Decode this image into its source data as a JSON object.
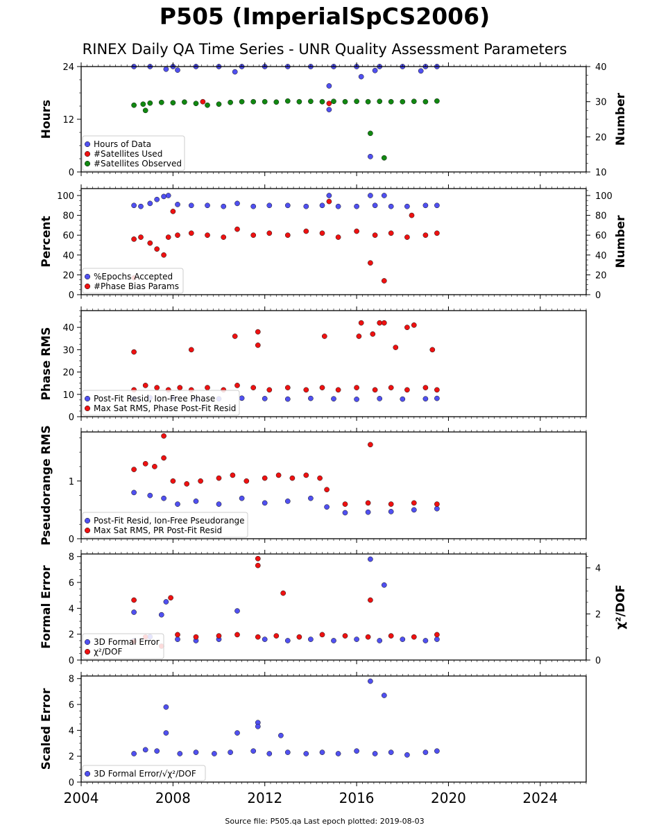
{
  "title": "P505 (ImperialSpCS2006)",
  "subtitle": "RINEX Daily QA Time Series - UNR Quality Assessment Parameters",
  "footer": "Source file: P505.qa Last epoch plotted: 2019-08-03",
  "colors": {
    "blue": "#5050f0",
    "red": "#ee1111",
    "green": "#118811",
    "dark_red": "#880000"
  },
  "chart_data": [
    {
      "type": "scatter",
      "ylabel": "Hours",
      "ylabel_right": "Number",
      "ylim": [
        0,
        24
      ],
      "ylim_right": [
        10,
        40
      ],
      "yticks": [
        0,
        12,
        24
      ],
      "yticks_right": [
        10,
        20,
        30,
        40
      ],
      "xlim": [
        2004,
        2026
      ],
      "xticks": [
        2004,
        2008,
        2012,
        2016,
        2020,
        2024
      ],
      "legend_loc": "lower-left",
      "series": [
        {
          "name": "Hours of Data",
          "color": "#5050f0",
          "axis": "left",
          "x": [
            2006.3,
            2007.0,
            2008.0,
            2009.0,
            2010.0,
            2011.0,
            2012.0,
            2013.0,
            2014.0,
            2015.0,
            2016.0,
            2017.0,
            2018.0,
            2019.0,
            2019.5,
            2007.7,
            2008.2,
            2010.7,
            2014.8,
            2014.8,
            2016.2,
            2016.6,
            2016.8,
            2018.8
          ],
          "y": [
            24,
            24,
            24,
            24,
            24,
            24,
            24,
            24,
            24,
            24,
            24,
            24,
            24,
            24,
            24,
            23.4,
            23.2,
            22.8,
            19.6,
            14.2,
            21.7,
            3.5,
            23.1,
            23.0
          ]
        },
        {
          "name": "#Satellites Used",
          "color": "#ee1111",
          "axis": "right",
          "x": [
            2009.3,
            2014.8
          ],
          "y": [
            30.0,
            29.5
          ]
        },
        {
          "name": "#Satellites Observed",
          "color": "#118811",
          "axis": "right",
          "x": [
            2006.3,
            2006.7,
            2007.0,
            2007.5,
            2008.0,
            2008.5,
            2009.0,
            2009.5,
            2010.0,
            2010.5,
            2011.0,
            2011.5,
            2012.0,
            2012.5,
            2013.0,
            2013.5,
            2014.0,
            2014.5,
            2015.0,
            2015.5,
            2016.0,
            2016.5,
            2017.0,
            2017.5,
            2018.0,
            2018.5,
            2019.0,
            2019.5,
            2006.8,
            2016.6,
            2017.2
          ],
          "y": [
            29.0,
            29.3,
            29.6,
            29.8,
            29.7,
            29.9,
            29.5,
            29.0,
            29.3,
            29.8,
            30.0,
            30.0,
            30.0,
            29.9,
            30.2,
            30.0,
            30.1,
            30.0,
            30.1,
            30.0,
            30.1,
            30.0,
            30.1,
            30.0,
            30.0,
            30.1,
            30.0,
            30.2,
            27.5,
            21.0,
            14.0
          ]
        }
      ]
    },
    {
      "type": "scatter",
      "ylabel": "Percent",
      "ylabel_right": "Number",
      "ylim": [
        0,
        107
      ],
      "ylim_right": [
        0,
        107
      ],
      "yticks": [
        0,
        20,
        40,
        60,
        80,
        100
      ],
      "yticks_right": [
        0,
        20,
        40,
        60,
        80,
        100
      ],
      "xlim": [
        2004,
        2026
      ],
      "xticks": [
        2004,
        2008,
        2012,
        2016,
        2020,
        2024
      ],
      "legend_loc": "lower-left",
      "series": [
        {
          "name": "%Epochs Accepted",
          "color": "#5050f0",
          "axis": "left",
          "x": [
            2006.3,
            2006.6,
            2007.0,
            2007.3,
            2007.6,
            2007.8,
            2008.2,
            2008.8,
            2009.5,
            2010.2,
            2010.8,
            2011.5,
            2012.2,
            2013.0,
            2013.8,
            2014.5,
            2015.2,
            2016.0,
            2016.8,
            2017.5,
            2018.2,
            2019.0,
            2019.5,
            2014.8,
            2016.6,
            2017.2
          ],
          "y": [
            90,
            89,
            92,
            96,
            99,
            100,
            91,
            90,
            90,
            89,
            92,
            89,
            90,
            90,
            89,
            90,
            89,
            89,
            90,
            89,
            89,
            90,
            90,
            100,
            100,
            100
          ]
        },
        {
          "name": "#Phase Bias Params",
          "color": "#ee1111",
          "axis": "right",
          "x": [
            2006.3,
            2006.6,
            2007.0,
            2007.3,
            2007.6,
            2007.8,
            2008.2,
            2008.8,
            2009.5,
            2010.2,
            2010.8,
            2011.5,
            2012.2,
            2013.0,
            2013.8,
            2014.5,
            2015.2,
            2016.0,
            2016.8,
            2017.5,
            2018.2,
            2019.0,
            2019.5,
            2016.6,
            2017.2,
            2006.3,
            2008.0,
            2014.8,
            2018.4
          ],
          "y": [
            56,
            58,
            52,
            46,
            40,
            58,
            60,
            62,
            60,
            58,
            66,
            60,
            62,
            60,
            64,
            62,
            58,
            64,
            60,
            62,
            58,
            60,
            62,
            32,
            14,
            17,
            84,
            94,
            80
          ]
        }
      ]
    },
    {
      "type": "scatter",
      "ylabel": "Phase RMS",
      "ylim": [
        0,
        47.5
      ],
      "yticks": [
        0,
        10,
        20,
        30,
        40
      ],
      "xlim": [
        2004,
        2026
      ],
      "xticks": [
        2004,
        2008,
        2012,
        2016,
        2020,
        2024
      ],
      "legend_loc": "lower-left",
      "series": [
        {
          "name": "Post-Fit Resid, Ion-Free Phase",
          "color": "#5050f0",
          "x": [
            2006.3,
            2007.0,
            2008.0,
            2009.0,
            2010.0,
            2011.0,
            2012.0,
            2013.0,
            2014.0,
            2015.0,
            2016.0,
            2017.0,
            2018.0,
            2019.0,
            2019.5
          ],
          "y": [
            8,
            8.5,
            8.2,
            7.8,
            8.0,
            8.3,
            8.1,
            7.9,
            8.2,
            8.0,
            7.8,
            8.1,
            7.9,
            8.0,
            8.2
          ]
        },
        {
          "name": "Max Sat RMS, Phase Post-Fit Resid",
          "color": "#ee1111",
          "x": [
            2006.3,
            2006.8,
            2007.3,
            2007.8,
            2008.3,
            2008.8,
            2009.5,
            2010.2,
            2010.8,
            2011.5,
            2012.2,
            2013.0,
            2013.8,
            2014.5,
            2015.2,
            2016.0,
            2016.8,
            2017.5,
            2018.2,
            2019.0,
            2019.5,
            2006.3,
            2008.8,
            2010.7,
            2011.7,
            2011.7,
            2014.6,
            2016.1,
            2016.2,
            2016.7,
            2017.0,
            2017.2,
            2017.7,
            2018.2,
            2018.5,
            2019.3
          ],
          "y": [
            12,
            14,
            13,
            12,
            13,
            12,
            13,
            12,
            14,
            13,
            12,
            13,
            12,
            13,
            12,
            13,
            12,
            13,
            12,
            13,
            12,
            29,
            30,
            36,
            38,
            32,
            36,
            36,
            42,
            37,
            42,
            42,
            31,
            40,
            41,
            30
          ]
        }
      ]
    },
    {
      "type": "scatter",
      "ylabel": "Pseudorange RMS",
      "ylim": [
        0,
        1.85
      ],
      "yticks": [
        0,
        1
      ],
      "xlim": [
        2004,
        2026
      ],
      "xticks": [
        2004,
        2008,
        2012,
        2016,
        2020,
        2024
      ],
      "legend_loc": "lower-left",
      "series": [
        {
          "name": "Post-Fit Resid, Ion-Free Pseudorange",
          "color": "#5050f0",
          "x": [
            2006.3,
            2007.0,
            2007.6,
            2008.2,
            2009.0,
            2010.0,
            2011.0,
            2012.0,
            2013.0,
            2014.0,
            2014.7,
            2015.5,
            2016.5,
            2017.5,
            2018.5,
            2019.5
          ],
          "y": [
            0.8,
            0.75,
            0.7,
            0.6,
            0.65,
            0.6,
            0.7,
            0.62,
            0.65,
            0.7,
            0.55,
            0.45,
            0.46,
            0.47,
            0.5,
            0.52
          ]
        },
        {
          "name": "Max Sat RMS, PR Post-Fit Resid",
          "color": "#ee1111",
          "x": [
            2006.3,
            2006.8,
            2007.2,
            2007.6,
            2008.0,
            2008.6,
            2009.2,
            2010.0,
            2010.6,
            2011.2,
            2012.0,
            2012.6,
            2013.2,
            2013.8,
            2014.4,
            2014.7,
            2015.5,
            2016.5,
            2017.5,
            2018.5,
            2019.5,
            2016.6,
            2007.6
          ],
          "y": [
            1.2,
            1.3,
            1.25,
            1.4,
            1.0,
            0.95,
            1.0,
            1.05,
            1.1,
            1.0,
            1.05,
            1.1,
            1.05,
            1.1,
            1.05,
            0.85,
            0.6,
            0.62,
            0.6,
            0.62,
            0.6,
            1.63,
            1.78
          ]
        }
      ]
    },
    {
      "type": "scatter",
      "ylabel": "Formal Error",
      "ylabel_right": "χ²/DOF",
      "ylim": [
        0,
        8.2
      ],
      "ylim_right": [
        0,
        4.6
      ],
      "yticks": [
        0,
        2,
        4,
        6,
        8
      ],
      "yticks_right": [
        0,
        2,
        4
      ],
      "xlim": [
        2004,
        2026
      ],
      "xticks": [
        2004,
        2008,
        2012,
        2016,
        2020,
        2024
      ],
      "legend_loc": "lower-left",
      "series": [
        {
          "name": "3D Formal Error",
          "color": "#5050f0",
          "axis": "left",
          "x": [
            2006.3,
            2007.0,
            2007.5,
            2007.7,
            2008.2,
            2009.0,
            2010.0,
            2010.8,
            2012.0,
            2013.0,
            2014.0,
            2015.0,
            2016.0,
            2017.0,
            2018.0,
            2019.0,
            2019.5,
            2006.3,
            2016.6,
            2017.2
          ],
          "y": [
            1.5,
            1.8,
            3.5,
            4.5,
            1.6,
            1.5,
            1.6,
            3.8,
            1.6,
            1.5,
            1.6,
            1.5,
            1.6,
            1.5,
            1.6,
            1.5,
            1.6,
            3.7,
            7.8,
            5.8
          ]
        },
        {
          "name": "χ²/DOF",
          "color": "#ee1111",
          "axis": "right",
          "x": [
            2006.3,
            2006.8,
            2007.5,
            2008.2,
            2009.0,
            2010.0,
            2010.8,
            2011.7,
            2012.5,
            2013.5,
            2014.5,
            2015.5,
            2016.5,
            2017.5,
            2018.5,
            2019.5,
            2006.3,
            2007.9,
            2011.7,
            2011.7,
            2012.8,
            2016.6
          ],
          "y": [
            0.8,
            1.0,
            0.6,
            1.1,
            1.0,
            1.05,
            1.1,
            1.0,
            1.05,
            1.0,
            1.1,
            1.05,
            1.0,
            1.05,
            1.0,
            1.1,
            2.6,
            2.7,
            4.4,
            4.1,
            2.9,
            2.6
          ]
        }
      ]
    },
    {
      "type": "scatter",
      "ylabel": "Scaled Error",
      "ylim": [
        0,
        8.2
      ],
      "yticks": [
        0,
        2,
        4,
        6,
        8
      ],
      "xlim": [
        2004,
        2026
      ],
      "xticks": [
        2004,
        2008,
        2012,
        2016,
        2020,
        2024
      ],
      "legend_loc": "lower-left",
      "series": [
        {
          "name": "3D Formal Error/√χ²/DOF",
          "color": "#5050f0",
          "x": [
            2006.3,
            2006.8,
            2007.3,
            2007.7,
            2008.3,
            2009.0,
            2009.8,
            2010.5,
            2010.8,
            2011.5,
            2012.2,
            2013.0,
            2013.8,
            2014.5,
            2015.2,
            2016.0,
            2016.8,
            2017.5,
            2018.2,
            2019.0,
            2019.5,
            2007.7,
            2011.7,
            2011.7,
            2016.6,
            2017.2,
            2012.7
          ],
          "y": [
            2.2,
            2.5,
            2.4,
            3.8,
            2.2,
            2.3,
            2.2,
            2.3,
            3.8,
            2.4,
            2.2,
            2.3,
            2.2,
            2.3,
            2.2,
            2.4,
            2.2,
            2.3,
            2.1,
            2.3,
            2.4,
            5.8,
            4.6,
            4.3,
            7.8,
            6.7,
            3.6
          ]
        }
      ]
    }
  ]
}
